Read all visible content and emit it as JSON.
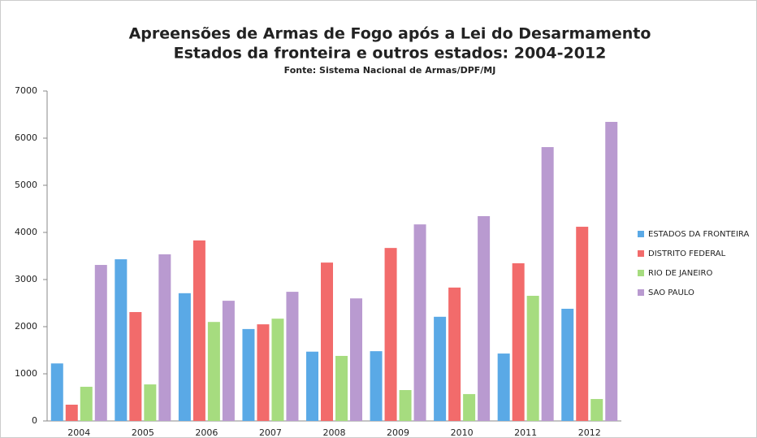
{
  "chart_data": {
    "type": "bar",
    "title": "Apreensões de Armas de Fogo após a Lei do Desarmamento",
    "subtitle": "Estados da fronteira e outros estados: 2004-2012",
    "source": "Fonte: Sistema Nacional de Armas/DPF/MJ",
    "categories": [
      "2004",
      "2005",
      "2006",
      "2007",
      "2008",
      "2009",
      "2010",
      "2011",
      "2012"
    ],
    "series": [
      {
        "name": "ESTADOS DA FRONTEIRA",
        "color": "#5aa9e6",
        "values": [
          1220,
          3430,
          2710,
          1950,
          1470,
          1480,
          2210,
          1430,
          2380
        ]
      },
      {
        "name": "DISTRITO FEDERAL",
        "color": "#f26b6b",
        "values": [
          345,
          2310,
          3830,
          2050,
          3360,
          3670,
          2830,
          3345,
          4120
        ]
      },
      {
        "name": "RIO DE JANEIRO",
        "color": "#a6dc7f",
        "values": [
          725,
          775,
          2100,
          2170,
          1380,
          655,
          570,
          2655,
          465
        ]
      },
      {
        "name": "SAO PAULO",
        "color": "#b99ad0",
        "values": [
          3310,
          3535,
          2550,
          2740,
          2600,
          4170,
          4345,
          5810,
          6345
        ]
      }
    ],
    "ylim": [
      0,
      7000
    ],
    "yticks": [
      0,
      1000,
      2000,
      3000,
      4000,
      5000,
      6000,
      7000
    ],
    "grid": false,
    "legend": "right"
  }
}
